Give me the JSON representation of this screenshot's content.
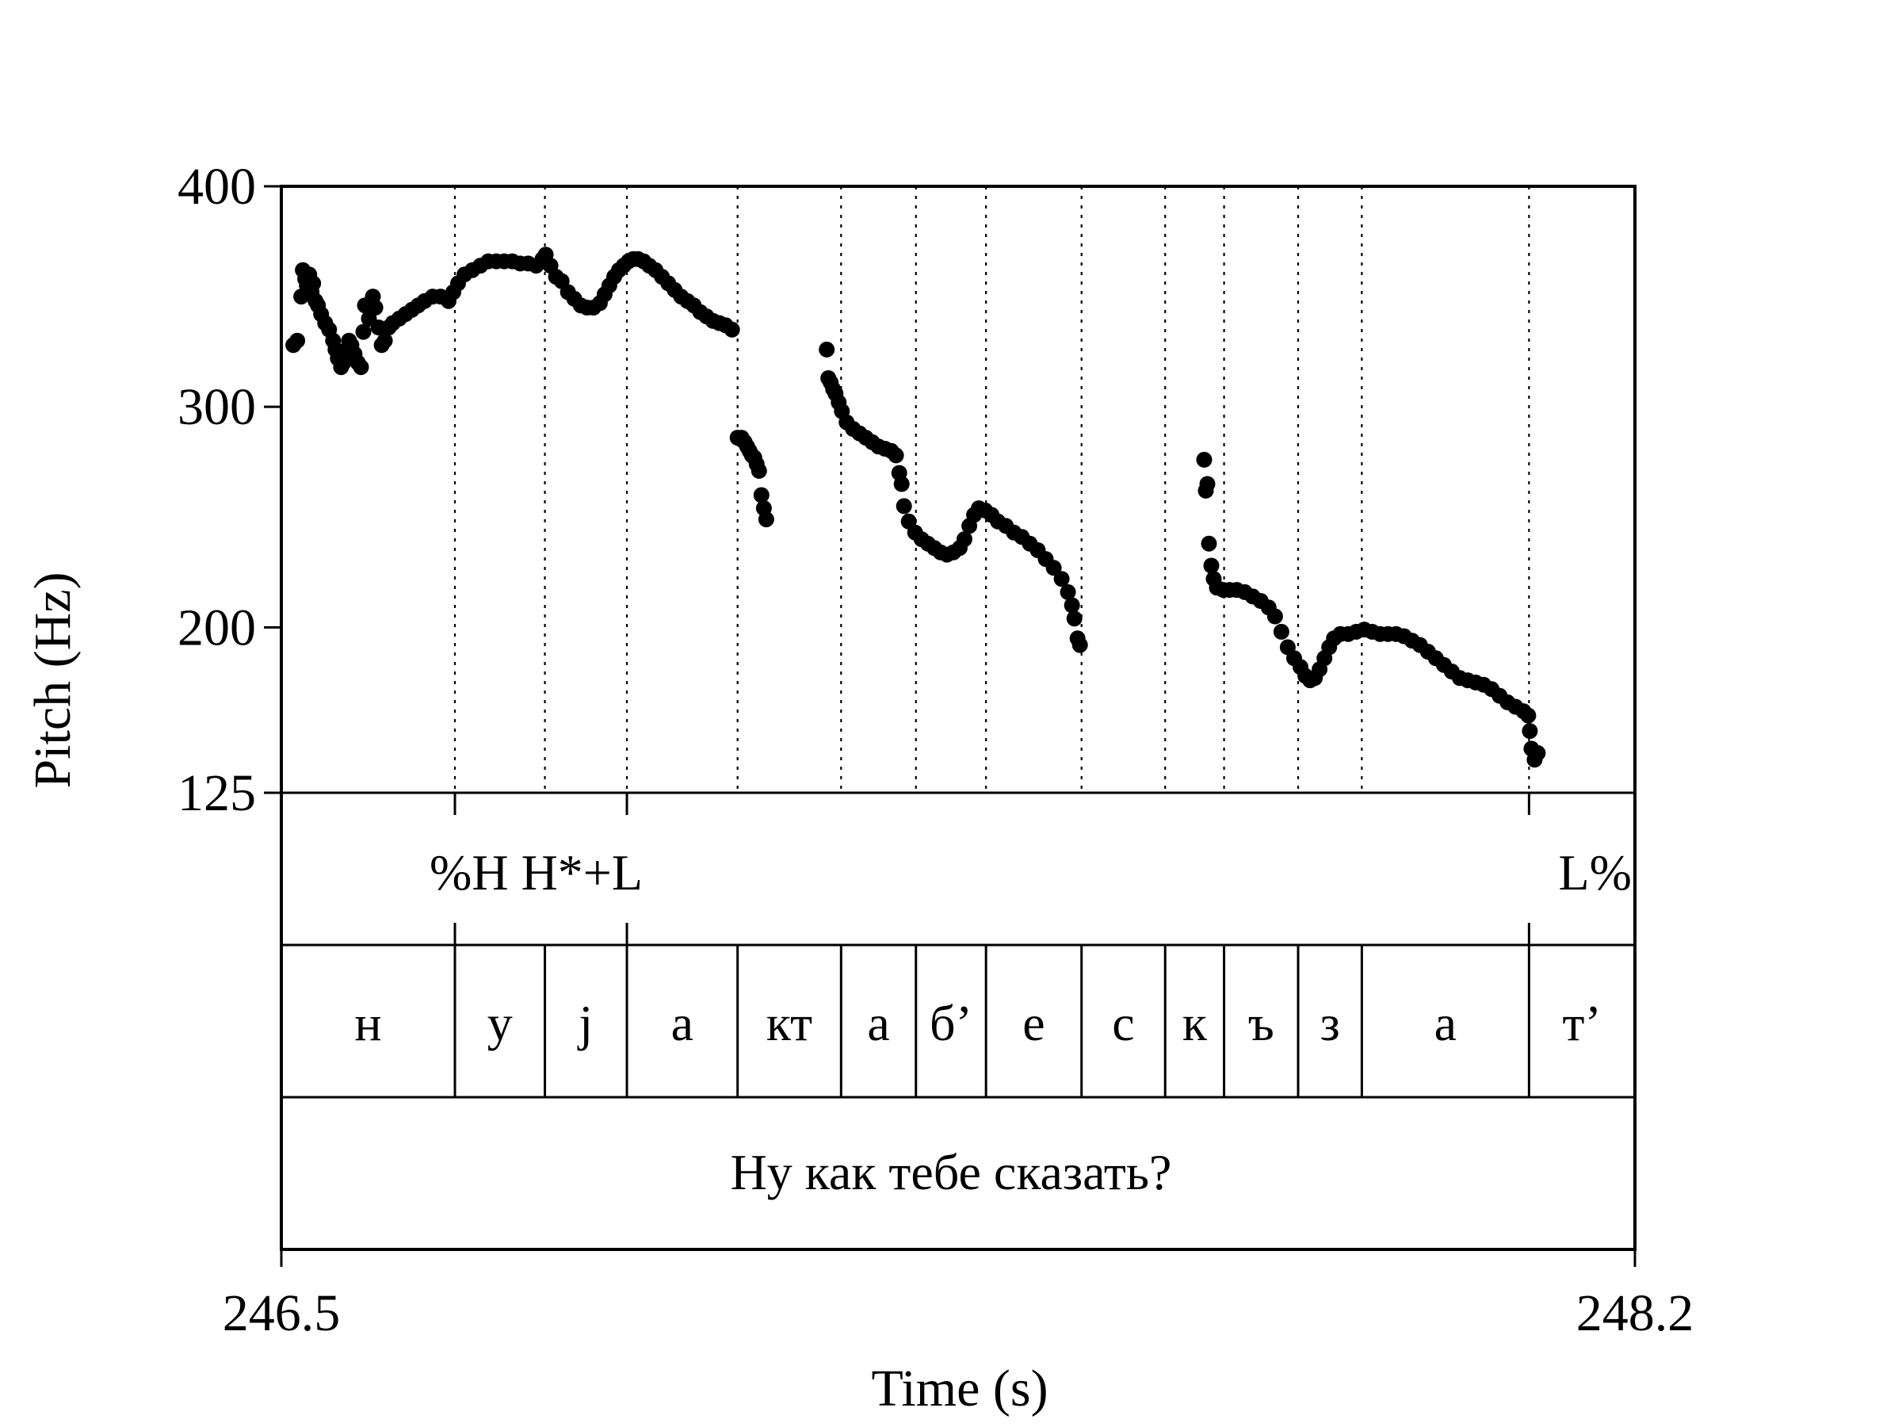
{
  "chart_data": {
    "type": "scatter",
    "xlabel": "Time (s)",
    "ylabel": "Pitch (Hz)",
    "xlim": [
      246.5,
      248.2
    ],
    "ylim": [
      125,
      400
    ],
    "xticks": [
      "246.5",
      "248.2"
    ],
    "yticks": [
      {
        "value": 400,
        "label": "400"
      },
      {
        "value": 300,
        "label": "300"
      },
      {
        "value": 200,
        "label": "200"
      },
      {
        "value": 125,
        "label": "125"
      }
    ],
    "grid": "vertical dotted lines at segment boundaries",
    "point_color": "#000000",
    "boundaries": [
      246.718,
      246.831,
      246.934,
      247.073,
      247.203,
      247.297,
      247.385,
      247.505,
      247.61,
      247.684,
      247.777,
      247.857,
      248.067
    ],
    "tones_tier": {
      "boundaries": [
        246.718,
        246.934,
        248.067
      ],
      "labels": [
        {
          "text": "%H H*+L",
          "x": 246.82
        },
        {
          "text": "L%",
          "x": 248.15
        }
      ]
    },
    "segments_tier": [
      {
        "text": "н",
        "start": 246.5,
        "end": 246.718
      },
      {
        "text": "у",
        "start": 246.718,
        "end": 246.831
      },
      {
        "text": "j",
        "start": 246.831,
        "end": 246.934
      },
      {
        "text": "а",
        "start": 246.934,
        "end": 247.073
      },
      {
        "text": "кт",
        "start": 247.073,
        "end": 247.203
      },
      {
        "text": "а",
        "start": 247.203,
        "end": 247.297
      },
      {
        "text": "б’",
        "start": 247.297,
        "end": 247.385
      },
      {
        "text": "е",
        "start": 247.385,
        "end": 247.505
      },
      {
        "text": "с",
        "start": 247.505,
        "end": 247.61
      },
      {
        "text": "к",
        "start": 247.61,
        "end": 247.684
      },
      {
        "text": "ъ",
        "start": 247.684,
        "end": 247.777
      },
      {
        "text": "з",
        "start": 247.777,
        "end": 247.857
      },
      {
        "text": "а",
        "start": 247.857,
        "end": 248.067
      },
      {
        "text": "т’",
        "start": 248.067,
        "end": 248.2
      }
    ],
    "sentence_tier": "Ну как тебе сказать?",
    "series": [
      {
        "points": [
          [
            246.515,
            328
          ],
          [
            246.52,
            330
          ],
          [
            246.525,
            350
          ],
          [
            246.527,
            362
          ],
          [
            246.53,
            358
          ],
          [
            246.532,
            355
          ],
          [
            246.535,
            360
          ],
          [
            246.538,
            352
          ],
          [
            246.54,
            356
          ],
          [
            246.543,
            348
          ],
          [
            246.546,
            346
          ],
          [
            246.55,
            342
          ],
          [
            246.555,
            338
          ],
          [
            246.56,
            335
          ],
          [
            246.565,
            330
          ],
          [
            246.568,
            326
          ],
          [
            246.571,
            322
          ],
          [
            246.575,
            318
          ],
          [
            246.578,
            320
          ],
          [
            246.582,
            326
          ],
          [
            246.585,
            330
          ],
          [
            246.588,
            328
          ],
          [
            246.592,
            324
          ],
          [
            246.596,
            320
          ],
          [
            246.6,
            318
          ],
          [
            246.603,
            334
          ],
          [
            246.605,
            346
          ],
          [
            246.61,
            340
          ],
          [
            246.615,
            350
          ],
          [
            246.618,
            345
          ],
          [
            246.622,
            336
          ],
          [
            246.626,
            328
          ],
          [
            246.63,
            330
          ],
          [
            246.635,
            336
          ],
          [
            246.64,
            338
          ],
          [
            246.648,
            340
          ],
          [
            246.656,
            342
          ],
          [
            246.664,
            344
          ],
          [
            246.672,
            346
          ],
          [
            246.68,
            348
          ],
          [
            246.69,
            350
          ],
          [
            246.7,
            350
          ],
          [
            246.71,
            348
          ],
          [
            246.716,
            352
          ],
          [
            246.722,
            356
          ],
          [
            246.73,
            360
          ],
          [
            246.74,
            362
          ],
          [
            246.75,
            364
          ],
          [
            246.76,
            366
          ],
          [
            246.77,
            366
          ],
          [
            246.78,
            366
          ],
          [
            246.79,
            366
          ],
          [
            246.8,
            365
          ],
          [
            246.81,
            365
          ],
          [
            246.82,
            364
          ],
          [
            246.828,
            367
          ],
          [
            246.832,
            369
          ],
          [
            246.838,
            364
          ],
          [
            246.845,
            359
          ],
          [
            246.852,
            357
          ],
          [
            246.86,
            352
          ],
          [
            246.868,
            349
          ],
          [
            246.876,
            346
          ],
          [
            246.884,
            345
          ],
          [
            246.892,
            345
          ],
          [
            246.9,
            347
          ],
          [
            246.906,
            351
          ],
          [
            246.912,
            355
          ],
          [
            246.918,
            359
          ],
          [
            246.924,
            362
          ],
          [
            246.93,
            364
          ],
          [
            246.936,
            366
          ],
          [
            246.942,
            367
          ],
          [
            246.948,
            367
          ],
          [
            246.955,
            366
          ],
          [
            246.962,
            364
          ],
          [
            246.97,
            362
          ],
          [
            246.978,
            359
          ],
          [
            246.986,
            356
          ],
          [
            246.994,
            353
          ],
          [
            247.002,
            350
          ],
          [
            247.01,
            348
          ],
          [
            247.018,
            346
          ],
          [
            247.026,
            343
          ],
          [
            247.034,
            341
          ],
          [
            247.042,
            339
          ],
          [
            247.05,
            338
          ],
          [
            247.058,
            337
          ],
          [
            247.066,
            335
          ],
          [
            247.073,
            286
          ],
          [
            247.078,
            286
          ],
          [
            247.082,
            284
          ],
          [
            247.085,
            282
          ],
          [
            247.088,
            280
          ],
          [
            247.091,
            278
          ],
          [
            247.094,
            277
          ],
          [
            247.097,
            274
          ],
          [
            247.1,
            271
          ],
          [
            247.103,
            260
          ],
          [
            247.106,
            254
          ],
          [
            247.109,
            249
          ],
          [
            247.185,
            326
          ],
          [
            247.187,
            313
          ],
          [
            247.19,
            311
          ],
          [
            247.193,
            308
          ],
          [
            247.196,
            306
          ],
          [
            247.2,
            302
          ],
          [
            247.204,
            298
          ],
          [
            247.21,
            293
          ],
          [
            247.218,
            290
          ],
          [
            247.226,
            288
          ],
          [
            247.234,
            286
          ],
          [
            247.242,
            284
          ],
          [
            247.25,
            282
          ],
          [
            247.258,
            281
          ],
          [
            247.266,
            280
          ],
          [
            247.272,
            278
          ],
          [
            247.276,
            270
          ],
          [
            247.279,
            265
          ],
          [
            247.282,
            255
          ],
          [
            247.288,
            248
          ],
          [
            247.296,
            243
          ],
          [
            247.304,
            240
          ],
          [
            247.312,
            238
          ],
          [
            247.32,
            236
          ],
          [
            247.328,
            234
          ],
          [
            247.336,
            233
          ],
          [
            247.344,
            234
          ],
          [
            247.352,
            236
          ],
          [
            247.358,
            240
          ],
          [
            247.364,
            246
          ],
          [
            247.37,
            251
          ],
          [
            247.376,
            254
          ],
          [
            247.384,
            253
          ],
          [
            247.392,
            251
          ],
          [
            247.4,
            248
          ],
          [
            247.41,
            246
          ],
          [
            247.42,
            243
          ],
          [
            247.43,
            241
          ],
          [
            247.44,
            238
          ],
          [
            247.45,
            235
          ],
          [
            247.46,
            231
          ],
          [
            247.47,
            227
          ],
          [
            247.48,
            222
          ],
          [
            247.488,
            216
          ],
          [
            247.493,
            210
          ],
          [
            247.496,
            204
          ],
          [
            247.5,
            195
          ],
          [
            247.503,
            192
          ],
          [
            247.659,
            276
          ],
          [
            247.661,
            262
          ],
          [
            247.663,
            265
          ],
          [
            247.665,
            238
          ],
          [
            247.668,
            228
          ],
          [
            247.671,
            222
          ],
          [
            247.675,
            218
          ],
          [
            247.683,
            217
          ],
          [
            247.691,
            217
          ],
          [
            247.7,
            217
          ],
          [
            247.71,
            216
          ],
          [
            247.72,
            214
          ],
          [
            247.73,
            212
          ],
          [
            247.74,
            209
          ],
          [
            247.748,
            205
          ],
          [
            247.756,
            198
          ],
          [
            247.764,
            191
          ],
          [
            247.772,
            186
          ],
          [
            247.78,
            182
          ],
          [
            247.786,
            178
          ],
          [
            247.792,
            176
          ],
          [
            247.798,
            177
          ],
          [
            247.804,
            181
          ],
          [
            247.81,
            186
          ],
          [
            247.816,
            191
          ],
          [
            247.822,
            195
          ],
          [
            247.83,
            197
          ],
          [
            247.84,
            197
          ],
          [
            247.85,
            198
          ],
          [
            247.86,
            199
          ],
          [
            247.87,
            198
          ],
          [
            247.88,
            197
          ],
          [
            247.89,
            197
          ],
          [
            247.9,
            197
          ],
          [
            247.91,
            196
          ],
          [
            247.92,
            194
          ],
          [
            247.93,
            192
          ],
          [
            247.94,
            189
          ],
          [
            247.95,
            186
          ],
          [
            247.96,
            183
          ],
          [
            247.97,
            180
          ],
          [
            247.98,
            177
          ],
          [
            247.99,
            176
          ],
          [
            248.0,
            175
          ],
          [
            248.01,
            174
          ],
          [
            248.02,
            172
          ],
          [
            248.03,
            169
          ],
          [
            248.04,
            166
          ],
          [
            248.05,
            164
          ],
          [
            248.06,
            162
          ],
          [
            248.066,
            160
          ],
          [
            248.068,
            153
          ],
          [
            248.07,
            145
          ],
          [
            248.074,
            140
          ],
          [
            248.078,
            143
          ]
        ]
      }
    ]
  }
}
